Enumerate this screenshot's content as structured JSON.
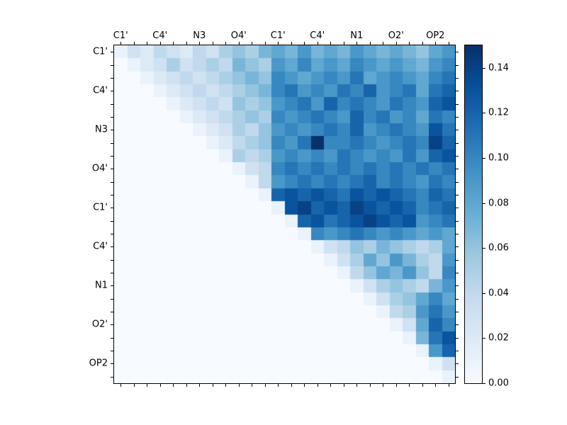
{
  "chart_data": {
    "type": "heatmap",
    "title": "",
    "x_tick_labels": [
      "C1'",
      "C4'",
      "N3",
      "O4'",
      "C1'",
      "C4'",
      "N1",
      "O2'",
      "OP2"
    ],
    "y_tick_labels": [
      "C1'",
      "C4'",
      "N3",
      "O4'",
      "C1'",
      "C4'",
      "N1",
      "O2'",
      "OP2"
    ],
    "tick_cells": [
      0,
      3,
      6,
      9,
      12,
      15,
      18,
      21,
      24
    ],
    "n": 26,
    "vmin": 0.0,
    "vmax": 0.15,
    "colormap": "Blues",
    "colorbar_ticks": [
      {
        "value": 0.0,
        "label": "0.00"
      },
      {
        "value": 0.02,
        "label": "0.02"
      },
      {
        "value": 0.04,
        "label": "0.04"
      },
      {
        "value": 0.06,
        "label": "0.06"
      },
      {
        "value": 0.08,
        "label": "0.08"
      },
      {
        "value": 0.1,
        "label": "0.10"
      },
      {
        "value": 0.12,
        "label": "0.12"
      },
      {
        "value": 0.14,
        "label": "0.14"
      }
    ],
    "matrix": [
      [
        0.01,
        0.03,
        0.02,
        0.04,
        0.03,
        0.02,
        0.04,
        0.03,
        0.05,
        0.06,
        0.05,
        0.07,
        0.08,
        0.07,
        0.09,
        0.07,
        0.08,
        0.07,
        0.09,
        0.08,
        0.07,
        0.08,
        0.07,
        0.06,
        0.08,
        0.09
      ],
      [
        0,
        0.01,
        0.02,
        0.03,
        0.05,
        0.03,
        0.04,
        0.05,
        0.04,
        0.07,
        0.06,
        0.05,
        0.09,
        0.08,
        0.1,
        0.08,
        0.09,
        0.08,
        0.1,
        0.09,
        0.08,
        0.09,
        0.08,
        0.07,
        0.09,
        0.1
      ],
      [
        0,
        0,
        0.01,
        0.02,
        0.03,
        0.04,
        0.03,
        0.04,
        0.05,
        0.06,
        0.07,
        0.06,
        0.1,
        0.09,
        0.08,
        0.09,
        0.1,
        0.09,
        0.11,
        0.08,
        0.09,
        0.1,
        0.09,
        0.08,
        0.1,
        0.11
      ],
      [
        0,
        0,
        0,
        0.01,
        0.02,
        0.03,
        0.04,
        0.03,
        0.04,
        0.05,
        0.06,
        0.07,
        0.1,
        0.11,
        0.09,
        0.1,
        0.09,
        0.11,
        0.1,
        0.12,
        0.09,
        0.1,
        0.11,
        0.08,
        0.11,
        0.12
      ],
      [
        0,
        0,
        0,
        0,
        0.01,
        0.02,
        0.03,
        0.04,
        0.03,
        0.06,
        0.05,
        0.06,
        0.09,
        0.1,
        0.11,
        0.09,
        0.12,
        0.1,
        0.11,
        0.1,
        0.09,
        0.11,
        0.1,
        0.09,
        0.12,
        0.13
      ],
      [
        0,
        0,
        0,
        0,
        0,
        0.01,
        0.02,
        0.03,
        0.04,
        0.05,
        0.06,
        0.05,
        0.1,
        0.09,
        0.1,
        0.11,
        0.1,
        0.09,
        0.12,
        0.1,
        0.11,
        0.09,
        0.1,
        0.08,
        0.11,
        0.1
      ],
      [
        0,
        0,
        0,
        0,
        0,
        0,
        0.01,
        0.02,
        0.03,
        0.05,
        0.04,
        0.06,
        0.09,
        0.1,
        0.09,
        0.1,
        0.11,
        0.1,
        0.12,
        0.09,
        0.1,
        0.11,
        0.1,
        0.09,
        0.13,
        0.11
      ],
      [
        0,
        0,
        0,
        0,
        0,
        0,
        0,
        0.01,
        0.02,
        0.04,
        0.05,
        0.06,
        0.1,
        0.09,
        0.11,
        0.15,
        0.1,
        0.1,
        0.11,
        0.1,
        0.09,
        0.1,
        0.11,
        0.1,
        0.14,
        0.12
      ],
      [
        0,
        0,
        0,
        0,
        0,
        0,
        0,
        0,
        0.01,
        0.05,
        0.04,
        0.05,
        0.09,
        0.1,
        0.09,
        0.1,
        0.09,
        0.11,
        0.1,
        0.09,
        0.1,
        0.09,
        0.11,
        0.09,
        0.12,
        0.13
      ],
      [
        0,
        0,
        0,
        0,
        0,
        0,
        0,
        0,
        0,
        0.01,
        0.03,
        0.04,
        0.1,
        0.11,
        0.1,
        0.11,
        0.1,
        0.11,
        0.1,
        0.11,
        0.1,
        0.11,
        0.1,
        0.11,
        0.1,
        0.11
      ],
      [
        0,
        0,
        0,
        0,
        0,
        0,
        0,
        0,
        0,
        0,
        0.01,
        0.04,
        0.09,
        0.1,
        0.11,
        0.1,
        0.11,
        0.1,
        0.11,
        0.12,
        0.1,
        0.11,
        0.1,
        0.09,
        0.11,
        0.1
      ],
      [
        0,
        0,
        0,
        0,
        0,
        0,
        0,
        0,
        0,
        0,
        0,
        0.01,
        0.12,
        0.13,
        0.12,
        0.13,
        0.12,
        0.11,
        0.13,
        0.12,
        0.13,
        0.12,
        0.11,
        0.1,
        0.12,
        0.11
      ],
      [
        0,
        0,
        0,
        0,
        0,
        0,
        0,
        0,
        0,
        0,
        0,
        0,
        0.01,
        0.13,
        0.14,
        0.12,
        0.13,
        0.12,
        0.14,
        0.13,
        0.12,
        0.13,
        0.12,
        0.1,
        0.11,
        0.12
      ],
      [
        0,
        0,
        0,
        0,
        0,
        0,
        0,
        0,
        0,
        0,
        0,
        0,
        0,
        0.01,
        0.12,
        0.13,
        0.11,
        0.12,
        0.13,
        0.14,
        0.13,
        0.12,
        0.13,
        0.09,
        0.1,
        0.11
      ],
      [
        0,
        0,
        0,
        0,
        0,
        0,
        0,
        0,
        0,
        0,
        0,
        0,
        0,
        0,
        0.01,
        0.1,
        0.09,
        0.1,
        0.11,
        0.1,
        0.09,
        0.1,
        0.09,
        0.08,
        0.09,
        0.08
      ],
      [
        0,
        0,
        0,
        0,
        0,
        0,
        0,
        0,
        0,
        0,
        0,
        0,
        0,
        0,
        0,
        0.01,
        0.03,
        0.04,
        0.06,
        0.05,
        0.07,
        0.06,
        0.05,
        0.04,
        0.05,
        0.08
      ],
      [
        0,
        0,
        0,
        0,
        0,
        0,
        0,
        0,
        0,
        0,
        0,
        0,
        0,
        0,
        0,
        0,
        0.01,
        0.03,
        0.05,
        0.08,
        0.06,
        0.09,
        0.07,
        0.05,
        0.04,
        0.09
      ],
      [
        0,
        0,
        0,
        0,
        0,
        0,
        0,
        0,
        0,
        0,
        0,
        0,
        0,
        0,
        0,
        0,
        0,
        0.01,
        0.04,
        0.06,
        0.08,
        0.07,
        0.09,
        0.06,
        0.04,
        0.1
      ],
      [
        0,
        0,
        0,
        0,
        0,
        0,
        0,
        0,
        0,
        0,
        0,
        0,
        0,
        0,
        0,
        0,
        0,
        0,
        0.01,
        0.03,
        0.05,
        0.06,
        0.05,
        0.04,
        0.07,
        0.09
      ],
      [
        0,
        0,
        0,
        0,
        0,
        0,
        0,
        0,
        0,
        0,
        0,
        0,
        0,
        0,
        0,
        0,
        0,
        0,
        0,
        0.01,
        0.03,
        0.05,
        0.06,
        0.08,
        0.1,
        0.08
      ],
      [
        0,
        0,
        0,
        0,
        0,
        0,
        0,
        0,
        0,
        0,
        0,
        0,
        0,
        0,
        0,
        0,
        0,
        0,
        0,
        0,
        0.01,
        0.04,
        0.05,
        0.09,
        0.11,
        0.09
      ],
      [
        0,
        0,
        0,
        0,
        0,
        0,
        0,
        0,
        0,
        0,
        0,
        0,
        0,
        0,
        0,
        0,
        0,
        0,
        0,
        0,
        0,
        0.01,
        0.03,
        0.08,
        0.12,
        0.1
      ],
      [
        0,
        0,
        0,
        0,
        0,
        0,
        0,
        0,
        0,
        0,
        0,
        0,
        0,
        0,
        0,
        0,
        0,
        0,
        0,
        0,
        0,
        0,
        0.01,
        0.07,
        0.11,
        0.13
      ],
      [
        0,
        0,
        0,
        0,
        0,
        0,
        0,
        0,
        0,
        0,
        0,
        0,
        0,
        0,
        0,
        0,
        0,
        0,
        0,
        0,
        0,
        0,
        0,
        0.01,
        0.09,
        0.12
      ],
      [
        0,
        0,
        0,
        0,
        0,
        0,
        0,
        0,
        0,
        0,
        0,
        0,
        0,
        0,
        0,
        0,
        0,
        0,
        0,
        0,
        0,
        0,
        0,
        0,
        0.01,
        0.03
      ],
      [
        0,
        0,
        0,
        0,
        0,
        0,
        0,
        0,
        0,
        0,
        0,
        0,
        0,
        0,
        0,
        0,
        0,
        0,
        0,
        0,
        0,
        0,
        0,
        0,
        0,
        0.01
      ]
    ]
  },
  "colors": {
    "background": "#ffffff",
    "frame": "#000000",
    "cmap_stops": [
      [
        0.0,
        "#f7fbff"
      ],
      [
        0.125,
        "#deebf7"
      ],
      [
        0.25,
        "#c6dbef"
      ],
      [
        0.375,
        "#9ecae1"
      ],
      [
        0.5,
        "#6baed6"
      ],
      [
        0.625,
        "#4292c6"
      ],
      [
        0.75,
        "#2171b5"
      ],
      [
        0.875,
        "#08519c"
      ],
      [
        1.0,
        "#08306b"
      ]
    ]
  }
}
